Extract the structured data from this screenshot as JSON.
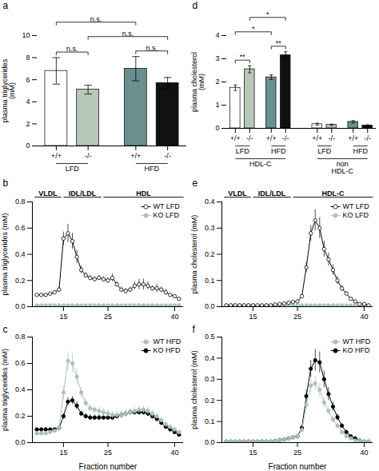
{
  "chart_data": [
    {
      "type": "bar",
      "title": "a",
      "ylabel": "plasma triglycerides\n(mM)",
      "categories": [
        "+/+",
        "-/-",
        "+/+",
        "-/-"
      ],
      "values": [
        6.8,
        5.1,
        7.0,
        5.7
      ],
      "errors": [
        1.2,
        0.4,
        1.1,
        0.5
      ],
      "colors": [
        "#ffffff",
        "#b8c8b8",
        "#6a8f8f",
        "#111111"
      ],
      "groups": [
        {
          "name": "LFD",
          "categories": [
            0,
            1
          ]
        },
        {
          "name": "HFD",
          "categories": [
            2,
            3
          ]
        }
      ],
      "annotations": [
        {
          "text": "n.s.",
          "between": [
            0,
            1
          ]
        },
        {
          "text": "n.s.",
          "between": [
            2,
            3
          ]
        },
        {
          "text": "n.s.",
          "between": [
            1,
            3
          ]
        },
        {
          "text": "n.s.",
          "between": [
            0,
            2
          ]
        }
      ],
      "ylim": [
        0,
        10
      ],
      "yticks": [
        0,
        2,
        4,
        6,
        8,
        10
      ]
    },
    {
      "type": "bar",
      "title": "d",
      "ylabel": "plasma cholesterol\n(mM)",
      "categories": [
        "+/+",
        "-/-",
        "+/+",
        "-/-",
        "+/+",
        "-/-",
        "+/+",
        "-/-"
      ],
      "values": [
        1.75,
        2.55,
        2.2,
        3.15,
        0.18,
        0.15,
        0.28,
        0.12
      ],
      "errors": [
        0.12,
        0.15,
        0.1,
        0.15,
        0.04,
        0.03,
        0.05,
        0.03
      ],
      "colors": [
        "#ffffff",
        "#b8c8b8",
        "#6a8f8f",
        "#111111",
        "#ffffff",
        "#b8c8b8",
        "#6a8f8f",
        "#111111"
      ],
      "groups": [
        {
          "name": "LFD",
          "categories": [
            0,
            1
          ]
        },
        {
          "name": "HFD",
          "categories": [
            2,
            3
          ]
        },
        {
          "name": "LFD",
          "categories": [
            4,
            5
          ]
        },
        {
          "name": "HFD",
          "categories": [
            6,
            7
          ]
        }
      ],
      "supergroups": [
        {
          "name": "HDL-C",
          "categories": [
            0,
            1,
            2,
            3
          ]
        },
        {
          "name": "non\nHDL-C",
          "categories": [
            4,
            5,
            6,
            7
          ]
        }
      ],
      "annotations": [
        {
          "text": "**",
          "between": [
            0,
            1
          ]
        },
        {
          "text": "**",
          "between": [
            2,
            3
          ]
        },
        {
          "text": "*",
          "between": [
            0,
            2
          ]
        },
        {
          "text": "*",
          "between": [
            1,
            3
          ]
        }
      ],
      "ylim": [
        0,
        4
      ],
      "yticks": [
        0,
        1,
        2,
        3,
        4
      ]
    },
    {
      "type": "line",
      "title": "b",
      "ylabel": "plasma triglycerides (mM)",
      "x": [
        9,
        10,
        11,
        12,
        13,
        14,
        15,
        16,
        17,
        18,
        19,
        20,
        21,
        22,
        23,
        24,
        25,
        26,
        27,
        28,
        29,
        30,
        31,
        32,
        33,
        34,
        35,
        36,
        37,
        38,
        39,
        40,
        41
      ],
      "series": [
        {
          "name": "WT LFD",
          "color": "#000000",
          "marker": "open_circle",
          "values": [
            0.09,
            0.09,
            0.09,
            0.1,
            0.11,
            0.13,
            0.52,
            0.56,
            0.5,
            0.38,
            0.28,
            0.24,
            0.22,
            0.21,
            0.22,
            0.21,
            0.2,
            0.22,
            0.17,
            0.13,
            0.12,
            0.13,
            0.16,
            0.17,
            0.17,
            0.16,
            0.14,
            0.14,
            0.13,
            0.11,
            0.09,
            0.08,
            0.06
          ],
          "errors": [
            0.01,
            0.01,
            0.01,
            0.01,
            0.01,
            0.02,
            0.05,
            0.07,
            0.06,
            0.05,
            0.03,
            0.02,
            0.02,
            0.02,
            0.02,
            0.02,
            0.02,
            0.03,
            0.02,
            0.02,
            0.02,
            0.02,
            0.03,
            0.04,
            0.04,
            0.03,
            0.02,
            0.03,
            0.02,
            0.02,
            0.01,
            0.01,
            0.01
          ]
        },
        {
          "name": "KO LFD",
          "color": "#aabfbf",
          "marker": "circle",
          "values": [
            0.01,
            0.01,
            0.01,
            0.01,
            0.01,
            0.01,
            0.01,
            0.01,
            0.01,
            0.01,
            0.01,
            0.01,
            0.01,
            0.01,
            0.01,
            0.01,
            0.01,
            0.01,
            0.01,
            0.01,
            0.01,
            0.01,
            0.01,
            0.01,
            0.01,
            0.01,
            0.01,
            0.01,
            0.01,
            0.01,
            0.01,
            0.01,
            0.01
          ],
          "errors": [
            0.002,
            0.002,
            0.002,
            0.002,
            0.002,
            0.002,
            0.002,
            0.002,
            0.002,
            0.002,
            0.002,
            0.002,
            0.002,
            0.002,
            0.002,
            0.002,
            0.002,
            0.002,
            0.002,
            0.002,
            0.002,
            0.002,
            0.002,
            0.002,
            0.002,
            0.002,
            0.002,
            0.002,
            0.002,
            0.002,
            0.002,
            0.002,
            0.002
          ]
        }
      ],
      "regions": [
        {
          "label": "VLDL",
          "span": [
            8.5,
            14.5
          ]
        },
        {
          "label": "IDL/LDL",
          "span": [
            15,
            23.5
          ]
        },
        {
          "label": "HDL",
          "span": [
            24,
            42
          ]
        }
      ],
      "xlim": [
        8,
        42
      ],
      "xticks": [
        15,
        25,
        40
      ],
      "ylim": [
        0.0,
        0.8
      ],
      "yticks": [
        {
          "value": 0.0,
          "label": "0.0"
        },
        0.2,
        0.4,
        0.6,
        0.8
      ],
      "legend": "upper right"
    },
    {
      "type": "line",
      "title": "e",
      "ylabel": "plasma cholesterol (mM)",
      "x": [
        9,
        10,
        11,
        12,
        13,
        14,
        15,
        16,
        17,
        18,
        19,
        20,
        21,
        22,
        23,
        24,
        25,
        26,
        27,
        28,
        29,
        30,
        31,
        32,
        33,
        34,
        35,
        36,
        37,
        38,
        39,
        40,
        41
      ],
      "series": [
        {
          "name": "WT LFD",
          "color": "#000000",
          "marker": "open_circle",
          "values": [
            0.005,
            0.005,
            0.005,
            0.005,
            0.005,
            0.005,
            0.005,
            0.005,
            0.005,
            0.005,
            0.005,
            0.008,
            0.01,
            0.012,
            0.015,
            0.018,
            0.02,
            0.04,
            0.15,
            0.28,
            0.33,
            0.3,
            0.22,
            0.18,
            0.14,
            0.1,
            0.07,
            0.05,
            0.03,
            0.02,
            0.01,
            0.01,
            0.005
          ],
          "errors": [
            0.001,
            0.001,
            0.001,
            0.001,
            0.001,
            0.001,
            0.001,
            0.001,
            0.001,
            0.001,
            0.001,
            0.001,
            0.001,
            0.002,
            0.002,
            0.002,
            0.003,
            0.005,
            0.02,
            0.03,
            0.04,
            0.04,
            0.03,
            0.025,
            0.02,
            0.015,
            0.01,
            0.007,
            0.005,
            0.003,
            0.002,
            0.002,
            0.001
          ]
        },
        {
          "name": "KO LFD",
          "color": "#aabfbf",
          "marker": "circle",
          "values": [
            0.005,
            0.005,
            0.005,
            0.005,
            0.005,
            0.005,
            0.005,
            0.005,
            0.005,
            0.005,
            0.005,
            0.005,
            0.005,
            0.005,
            0.005,
            0.005,
            0.005,
            0.005,
            0.005,
            0.005,
            0.005,
            0.005,
            0.005,
            0.005,
            0.005,
            0.005,
            0.005,
            0.005,
            0.005,
            0.005,
            0.005,
            0.005,
            0.005
          ],
          "errors": [
            0.001,
            0.001,
            0.001,
            0.001,
            0.001,
            0.001,
            0.001,
            0.001,
            0.001,
            0.001,
            0.001,
            0.001,
            0.001,
            0.001,
            0.001,
            0.001,
            0.001,
            0.001,
            0.001,
            0.001,
            0.001,
            0.001,
            0.001,
            0.001,
            0.001,
            0.001,
            0.001,
            0.001,
            0.001,
            0.001,
            0.001,
            0.001,
            0.001
          ]
        }
      ],
      "regions": [
        {
          "label": "VLDL",
          "span": [
            8.5,
            14.5
          ]
        },
        {
          "label": "IDL/LDL",
          "span": [
            15,
            23.5
          ]
        },
        {
          "label": "HDL-C",
          "span": [
            24,
            42
          ]
        }
      ],
      "xlim": [
        8,
        42
      ],
      "xticks": [
        15,
        25,
        40
      ],
      "ylim": [
        0.0,
        0.4
      ],
      "yticks": [
        {
          "value": 0.0,
          "label": "0.0"
        },
        0.1,
        0.2,
        0.3,
        0.4
      ],
      "legend": "upper right"
    },
    {
      "type": "line",
      "title": "c",
      "ylabel": "plasma triglycerides (mM)",
      "xlabel": "Fraction number",
      "x": [
        9,
        10,
        11,
        12,
        13,
        14,
        15,
        16,
        17,
        18,
        19,
        20,
        21,
        22,
        23,
        24,
        25,
        26,
        27,
        28,
        29,
        30,
        31,
        32,
        33,
        34,
        35,
        36,
        37,
        38,
        39,
        40,
        41
      ],
      "series": [
        {
          "name": "WT HFD",
          "color": "#aabfbf",
          "marker": "circle",
          "values": [
            0.07,
            0.07,
            0.07,
            0.08,
            0.09,
            0.11,
            0.38,
            0.62,
            0.6,
            0.5,
            0.38,
            0.3,
            0.26,
            0.25,
            0.24,
            0.23,
            0.22,
            0.21,
            0.21,
            0.21,
            0.22,
            0.23,
            0.24,
            0.25,
            0.25,
            0.24,
            0.22,
            0.2,
            0.17,
            0.14,
            0.12,
            0.1,
            0.08
          ],
          "errors": [
            0.01,
            0.01,
            0.01,
            0.01,
            0.01,
            0.02,
            0.05,
            0.07,
            0.07,
            0.06,
            0.04,
            0.03,
            0.03,
            0.03,
            0.03,
            0.03,
            0.03,
            0.03,
            0.03,
            0.03,
            0.03,
            0.03,
            0.03,
            0.03,
            0.03,
            0.03,
            0.03,
            0.02,
            0.02,
            0.02,
            0.01,
            0.01,
            0.01
          ]
        },
        {
          "name": "KO HFD",
          "color": "#000000",
          "marker": "circle",
          "values": [
            0.1,
            0.1,
            0.1,
            0.1,
            0.1,
            0.11,
            0.2,
            0.31,
            0.32,
            0.28,
            0.22,
            0.2,
            0.19,
            0.19,
            0.19,
            0.19,
            0.19,
            0.19,
            0.2,
            0.21,
            0.22,
            0.23,
            0.23,
            0.23,
            0.23,
            0.22,
            0.2,
            0.18,
            0.15,
            0.12,
            0.1,
            0.08,
            0.06
          ],
          "errors": [
            0.01,
            0.01,
            0.01,
            0.01,
            0.01,
            0.01,
            0.02,
            0.03,
            0.03,
            0.03,
            0.02,
            0.02,
            0.02,
            0.02,
            0.02,
            0.02,
            0.02,
            0.02,
            0.02,
            0.02,
            0.02,
            0.02,
            0.02,
            0.02,
            0.02,
            0.02,
            0.02,
            0.02,
            0.01,
            0.01,
            0.01,
            0.01,
            0.01
          ]
        }
      ],
      "xlim": [
        8,
        42
      ],
      "xticks": [
        15,
        25,
        40
      ],
      "ylim": [
        0.0,
        0.8
      ],
      "yticks": [
        {
          "value": 0.0,
          "label": "0.0"
        },
        0.2,
        0.4,
        0.6,
        0.8
      ],
      "legend": "upper right"
    },
    {
      "type": "line",
      "title": "f",
      "ylabel": "plasma cholesterol (mM)",
      "xlabel": "Fraction number",
      "x": [
        9,
        10,
        11,
        12,
        13,
        14,
        15,
        16,
        17,
        18,
        19,
        20,
        21,
        22,
        23,
        24,
        25,
        26,
        27,
        28,
        29,
        30,
        31,
        32,
        33,
        34,
        35,
        36,
        37,
        38,
        39,
        40,
        41
      ],
      "series": [
        {
          "name": "WT HFD",
          "color": "#aabfbf",
          "marker": "circle",
          "values": [
            0.005,
            0.005,
            0.005,
            0.005,
            0.005,
            0.005,
            0.005,
            0.005,
            0.005,
            0.005,
            0.005,
            0.008,
            0.012,
            0.015,
            0.02,
            0.025,
            0.03,
            0.06,
            0.18,
            0.27,
            0.28,
            0.25,
            0.19,
            0.15,
            0.11,
            0.08,
            0.05,
            0.03,
            0.02,
            0.01,
            0.01,
            0.005,
            0.005
          ],
          "errors": [
            0.001,
            0.001,
            0.001,
            0.001,
            0.001,
            0.001,
            0.001,
            0.001,
            0.001,
            0.001,
            0.001,
            0.001,
            0.002,
            0.002,
            0.003,
            0.003,
            0.004,
            0.008,
            0.025,
            0.035,
            0.035,
            0.032,
            0.025,
            0.02,
            0.015,
            0.011,
            0.007,
            0.004,
            0.003,
            0.002,
            0.002,
            0.001,
            0.001
          ]
        },
        {
          "name": "KO HFD",
          "color": "#000000",
          "marker": "circle",
          "values": [
            0.005,
            0.005,
            0.005,
            0.005,
            0.005,
            0.005,
            0.005,
            0.005,
            0.005,
            0.005,
            0.005,
            0.008,
            0.012,
            0.015,
            0.02,
            0.025,
            0.03,
            0.07,
            0.22,
            0.35,
            0.39,
            0.38,
            0.3,
            0.23,
            0.17,
            0.12,
            0.08,
            0.05,
            0.03,
            0.02,
            0.01,
            0.005,
            0.005
          ],
          "errors": [
            0.001,
            0.001,
            0.001,
            0.001,
            0.001,
            0.001,
            0.001,
            0.001,
            0.001,
            0.001,
            0.001,
            0.001,
            0.002,
            0.002,
            0.003,
            0.003,
            0.004,
            0.009,
            0.03,
            0.04,
            0.05,
            0.05,
            0.04,
            0.03,
            0.022,
            0.016,
            0.011,
            0.007,
            0.004,
            0.003,
            0.002,
            0.001,
            0.001
          ]
        }
      ],
      "xlim": [
        8,
        42
      ],
      "xticks": [
        15,
        25,
        40
      ],
      "ylim": [
        0.0,
        0.5
      ],
      "yticks": [
        {
          "value": 0.0,
          "label": "0.0"
        },
        0.1,
        0.2,
        0.3,
        0.4,
        0.5
      ],
      "legend": "upper right"
    }
  ]
}
